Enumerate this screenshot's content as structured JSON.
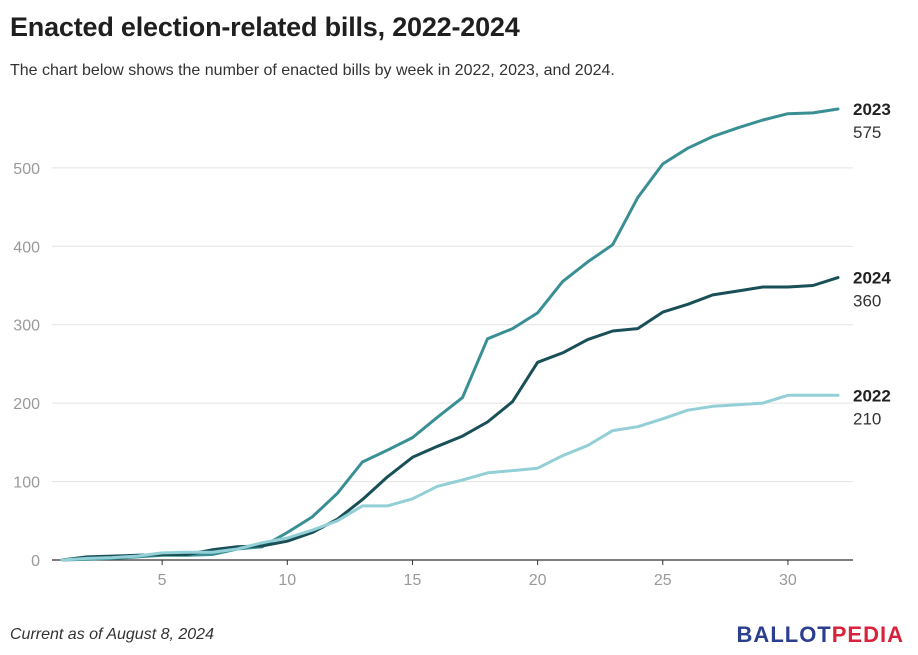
{
  "header": {
    "title": "Enacted election-related bills, 2022-2024",
    "subtitle": "The chart below shows the number of enacted bills by week in 2022, 2023, and 2024."
  },
  "footer": {
    "note": "Current as of August 8, 2024",
    "logo_part1": "BALLOT",
    "logo_part2": "PEDIA",
    "logo_colors": {
      "ballot": "#2b3f8e",
      "pedia": "#d8233c"
    }
  },
  "chart_data": {
    "type": "line",
    "title": "Enacted election-related bills, 2022-2024",
    "subtitle": "The chart below shows the number of enacted bills by week in 2022, 2023, and 2024.",
    "xlabel": "",
    "ylabel": "",
    "xlim": [
      1,
      32
    ],
    "ylim": [
      0,
      575
    ],
    "x_ticks": [
      5,
      10,
      15,
      20,
      25,
      30
    ],
    "y_ticks": [
      0,
      100,
      200,
      300,
      400,
      500
    ],
    "grid": true,
    "legend": "direct labels at right end of lines",
    "x": [
      1,
      2,
      3,
      4,
      5,
      6,
      7,
      8,
      9,
      10,
      11,
      12,
      13,
      14,
      15,
      16,
      17,
      18,
      19,
      20,
      21,
      22,
      23,
      24,
      25,
      26,
      27,
      28,
      29,
      30,
      31,
      32
    ],
    "series": [
      {
        "name": "2023",
        "end_label": "575",
        "color": "#3a8f94",
        "values": [
          0,
          1,
          2,
          4,
          6,
          6,
          7,
          14,
          17,
          35,
          55,
          85,
          125,
          140,
          156,
          182,
          207,
          282,
          295,
          315,
          355,
          380,
          402,
          462,
          505,
          525,
          540,
          551,
          561,
          569,
          570,
          575
        ]
      },
      {
        "name": "2024",
        "end_label": "360",
        "color": "#194f57",
        "values": [
          0,
          4,
          5,
          6,
          7,
          7,
          13,
          17,
          18,
          24,
          35,
          52,
          77,
          106,
          131,
          145,
          158,
          176,
          202,
          252,
          264,
          281,
          292,
          295,
          316,
          326,
          338,
          343,
          348,
          348,
          350,
          360
        ]
      },
      {
        "name": "2022",
        "end_label": "210",
        "color": "#93cfd6",
        "values": [
          0,
          2,
          3,
          5,
          9,
          10,
          10,
          14,
          22,
          28,
          38,
          50,
          69,
          69,
          78,
          94,
          102,
          111,
          114,
          117,
          133,
          146,
          165,
          170,
          180,
          191,
          196,
          198,
          200,
          210,
          210,
          210
        ]
      }
    ]
  }
}
